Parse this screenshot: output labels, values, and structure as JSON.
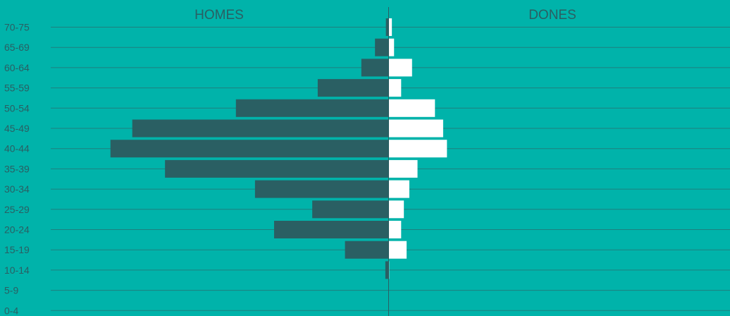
{
  "chart_data": {
    "type": "bar",
    "orientation": "horizontal-population-pyramid",
    "categories": [
      "70-75",
      "65-69",
      "60-64",
      "55-59",
      "50-54",
      "45-49",
      "40-44",
      "35-39",
      "30-34",
      "25-29",
      "20-24",
      "15-19",
      "10-14",
      "5-9",
      "0-4"
    ],
    "series": [
      {
        "name": "HOMES",
        "values": [
          0.5,
          2.5,
          5,
          13,
          28,
          47,
          51,
          41,
          24.5,
          14,
          21,
          8,
          0.6,
          0,
          0
        ]
      },
      {
        "name": "DONES",
        "values": [
          0.6,
          1,
          4.3,
          2.3,
          8.5,
          10,
          10.7,
          5.3,
          3.8,
          2.8,
          2.3,
          3.3,
          0.1,
          0,
          0
        ]
      }
    ],
    "colors": {
      "background": "#00B3AA",
      "homes": "#2A5F63",
      "dones": "#FFFFFF",
      "gridline": "#1F7F7E",
      "text": "#2A5F63"
    },
    "grid": true
  }
}
